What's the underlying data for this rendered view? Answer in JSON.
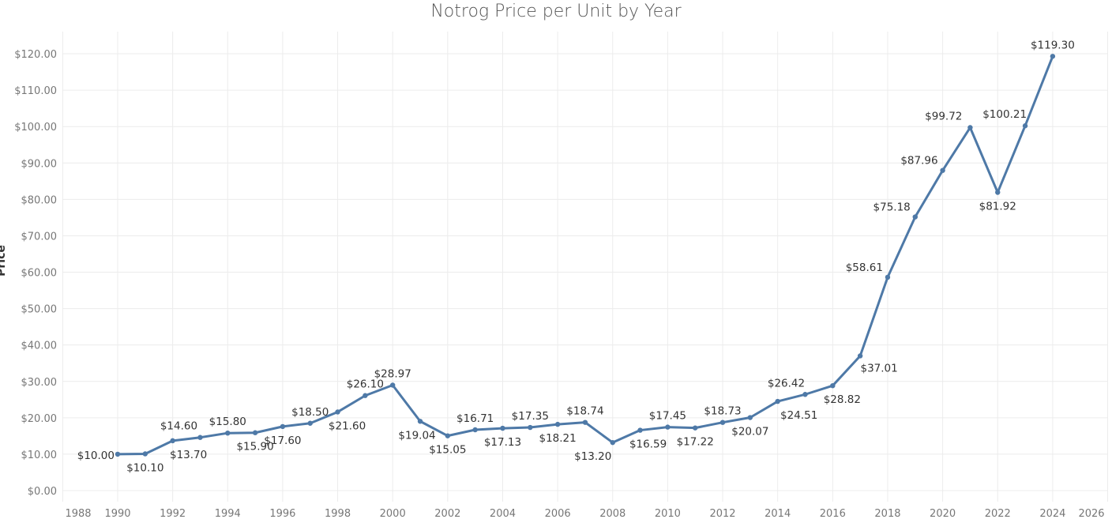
{
  "chart_data": {
    "type": "line",
    "title": "Notrog Price per Unit by Year",
    "xlabel": "",
    "ylabel": "Price",
    "x": [
      1990,
      1991,
      1992,
      1993,
      1994,
      1995,
      1996,
      1997,
      1998,
      1999,
      2000,
      2001,
      2002,
      2003,
      2004,
      2005,
      2006,
      2007,
      2008,
      2009,
      2010,
      2011,
      2012,
      2013,
      2014,
      2015,
      2016,
      2017,
      2018,
      2019,
      2020,
      2021,
      2022,
      2023,
      2024
    ],
    "values": [
      10.0,
      10.1,
      13.7,
      14.6,
      15.8,
      15.9,
      17.6,
      18.5,
      21.6,
      26.1,
      28.97,
      19.04,
      15.05,
      16.71,
      17.13,
      17.35,
      18.21,
      18.74,
      13.2,
      16.59,
      17.45,
      17.22,
      18.73,
      20.07,
      24.51,
      26.42,
      28.82,
      37.01,
      58.61,
      75.18,
      87.96,
      99.72,
      81.92,
      100.21,
      119.3
    ],
    "labels": [
      "$10.00",
      "$10.10",
      "$13.70",
      "$14.60",
      "$15.80",
      "$15.90",
      "$17.60",
      "$18.50",
      "$21.60",
      "$26.10",
      "$28.97",
      "$19.04",
      "$15.05",
      "$16.71",
      "$17.13",
      "$17.35",
      "$18.21",
      "$18.74",
      "$13.20",
      "$16.59",
      "$17.45",
      "$17.22",
      "$18.73",
      "$20.07",
      "$24.51",
      "$26.42",
      "$28.82",
      "$37.01",
      "$58.61",
      "$75.18",
      "$87.96",
      "$99.72",
      "$81.92",
      "$100.21",
      "$119.30"
    ],
    "x_ticks": [
      "1988",
      "1990",
      "1992",
      "1994",
      "1996",
      "1998",
      "2000",
      "2002",
      "2004",
      "2006",
      "2008",
      "2010",
      "2012",
      "2014",
      "2016",
      "2018",
      "2020",
      "2022",
      "2024",
      "2026"
    ],
    "y_ticks": [
      "$0.00",
      "$10.00",
      "$20.00",
      "$30.00",
      "$40.00",
      "$50.00",
      "$60.00",
      "$70.00",
      "$80.00",
      "$90.00",
      "$100.00",
      "$110.00",
      "$120.00"
    ],
    "ylim": [
      0,
      125
    ],
    "xlim": [
      1988,
      2026
    ],
    "grid": true,
    "line_color": "#4e79a7"
  }
}
